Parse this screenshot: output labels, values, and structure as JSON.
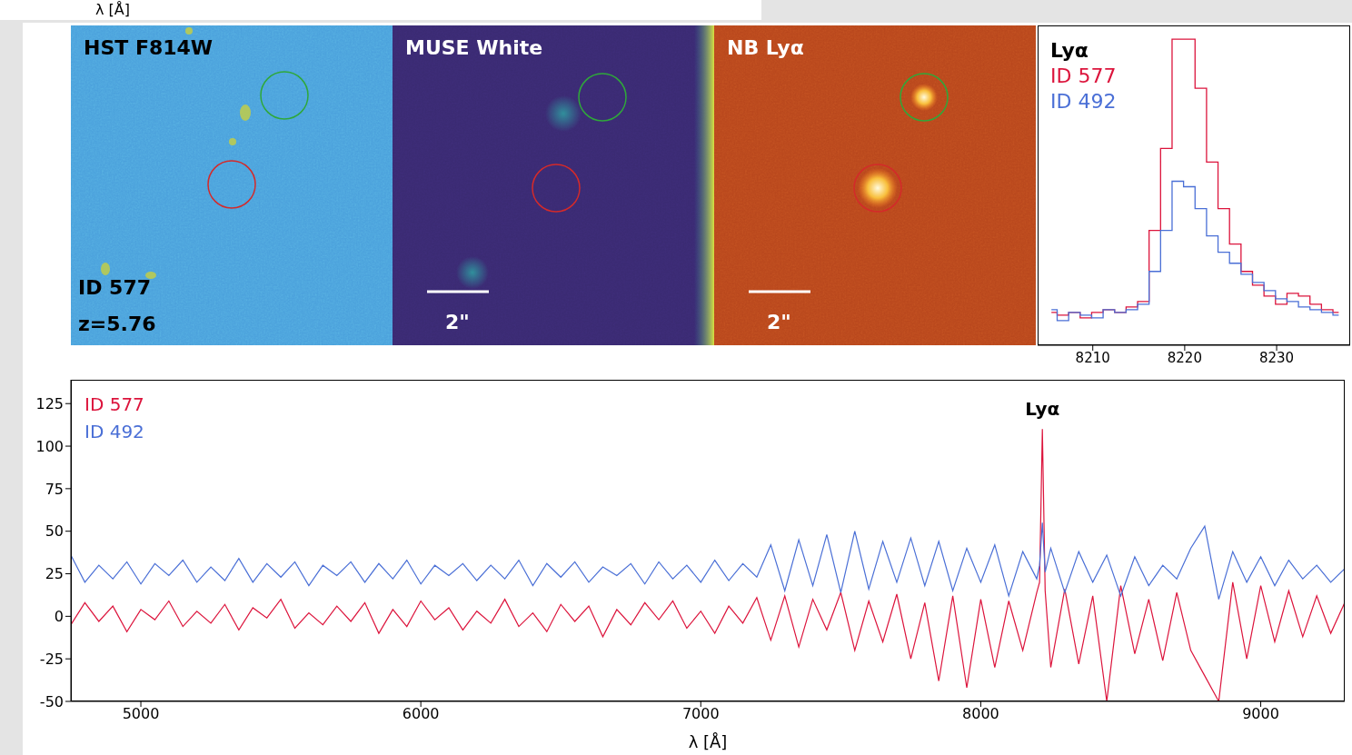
{
  "header_fragment": "λ [Å]",
  "panels": [
    {
      "title": "HST F814W",
      "annotations": [
        "ID 577",
        "z=5.76"
      ]
    },
    {
      "title": "MUSE White",
      "scale_bar": "2\""
    },
    {
      "title": "NB Lyα",
      "scale_bar": "2\""
    }
  ],
  "chart_data": [
    {
      "type": "line",
      "title": "Lyα",
      "line_style": "step",
      "tick_labels": "x",
      "x": [
        8205.5,
        8206.75,
        8208,
        8209.25,
        8210.5,
        8211.75,
        8213,
        8214.25,
        8215.5,
        8216.75,
        8218,
        8219.25,
        8220.5,
        8221.75,
        8223,
        8224.25,
        8225.5,
        8226.75,
        8228,
        8229.25,
        8230.5,
        8231.75,
        8233,
        8234.25,
        8235.5,
        8236.75
      ],
      "series": [
        {
          "name": "ID 577",
          "color": "#dc143c",
          "values": [
            0,
            -1,
            0,
            -2,
            0,
            1,
            0,
            2,
            4,
            30,
            60,
            100,
            100,
            82,
            55,
            38,
            25,
            15,
            10,
            6,
            3,
            7,
            6,
            3,
            1,
            0
          ]
        },
        {
          "name": "ID 492",
          "color": "#4a6fd6",
          "values": [
            1,
            -3,
            0,
            -1,
            -2,
            1,
            0,
            1,
            3,
            15,
            30,
            48,
            46,
            38,
            28,
            22,
            18,
            14,
            11,
            8,
            5,
            4,
            2,
            1,
            0,
            -1
          ]
        }
      ],
      "xlim": [
        8204,
        8238
      ],
      "xticks": [
        8210,
        8220,
        8230
      ],
      "ylim": [
        -12,
        105
      ]
    },
    {
      "type": "line",
      "x_label": "λ [Å]",
      "x": [
        4750,
        4800,
        4850,
        4900,
        4950,
        5000,
        5050,
        5100,
        5150,
        5200,
        5250,
        5300,
        5350,
        5400,
        5450,
        5500,
        5550,
        5600,
        5650,
        5700,
        5750,
        5800,
        5850,
        5900,
        5950,
        6000,
        6050,
        6100,
        6150,
        6200,
        6250,
        6300,
        6350,
        6400,
        6450,
        6500,
        6550,
        6600,
        6650,
        6700,
        6750,
        6800,
        6850,
        6900,
        6950,
        7000,
        7050,
        7100,
        7150,
        7200,
        7250,
        7300,
        7350,
        7400,
        7450,
        7500,
        7550,
        7600,
        7650,
        7700,
        7750,
        7800,
        7850,
        7900,
        7950,
        8000,
        8050,
        8100,
        8150,
        8200,
        8210,
        8220,
        8230,
        8250,
        8300,
        8350,
        8400,
        8450,
        8500,
        8550,
        8600,
        8650,
        8700,
        8750,
        8800,
        8850,
        8900,
        8950,
        9000,
        9050,
        9100,
        9150,
        9200,
        9250,
        9300
      ],
      "series": [
        {
          "name": "ID 577",
          "color": "#dc143c",
          "values": [
            -5,
            8,
            -3,
            6,
            -9,
            4,
            -2,
            9,
            -6,
            3,
            -4,
            7,
            -8,
            5,
            -1,
            10,
            -7,
            2,
            -5,
            6,
            -3,
            8,
            -10,
            4,
            -6,
            9,
            -2,
            5,
            -8,
            3,
            -4,
            10,
            -6,
            2,
            -9,
            7,
            -3,
            6,
            -12,
            4,
            -5,
            8,
            -2,
            9,
            -7,
            3,
            -10,
            6,
            -4,
            11,
            -14,
            12,
            -18,
            10,
            -8,
            14,
            -20,
            9,
            -15,
            13,
            -25,
            8,
            -38,
            12,
            -42,
            10,
            -30,
            9,
            -20,
            14,
            20,
            110,
            15,
            -30,
            16,
            -28,
            12,
            -50,
            18,
            -22,
            10,
            -26,
            14,
            -20,
            -35,
            -50,
            20,
            -25,
            18,
            -15,
            15,
            -12,
            12,
            -10,
            8
          ]
        },
        {
          "name": "ID 492",
          "color": "#4a6fd6",
          "values": [
            36,
            20,
            30,
            22,
            32,
            19,
            31,
            24,
            33,
            20,
            29,
            21,
            34,
            20,
            31,
            23,
            32,
            18,
            30,
            24,
            32,
            20,
            31,
            22,
            33,
            19,
            30,
            24,
            31,
            21,
            30,
            22,
            33,
            18,
            31,
            23,
            32,
            20,
            29,
            24,
            31,
            19,
            32,
            22,
            30,
            20,
            33,
            21,
            31,
            23,
            42,
            15,
            45,
            18,
            48,
            14,
            50,
            16,
            44,
            20,
            46,
            18,
            44,
            15,
            40,
            20,
            42,
            12,
            38,
            22,
            30,
            55,
            26,
            40,
            14,
            38,
            20,
            36,
            12,
            35,
            18,
            30,
            22,
            40,
            53,
            10,
            38,
            20,
            35,
            18,
            33,
            22,
            30,
            20,
            28
          ]
        }
      ],
      "xlim": [
        4750,
        9300
      ],
      "xticks": [
        5000,
        6000,
        7000,
        8000,
        9000
      ],
      "ylim": [
        -50,
        139
      ],
      "yticks": [
        -50,
        -25,
        0,
        25,
        50,
        75,
        100,
        125
      ],
      "annotations": [
        {
          "text": "Lyα",
          "x": 8220,
          "y": 122
        }
      ]
    }
  ]
}
